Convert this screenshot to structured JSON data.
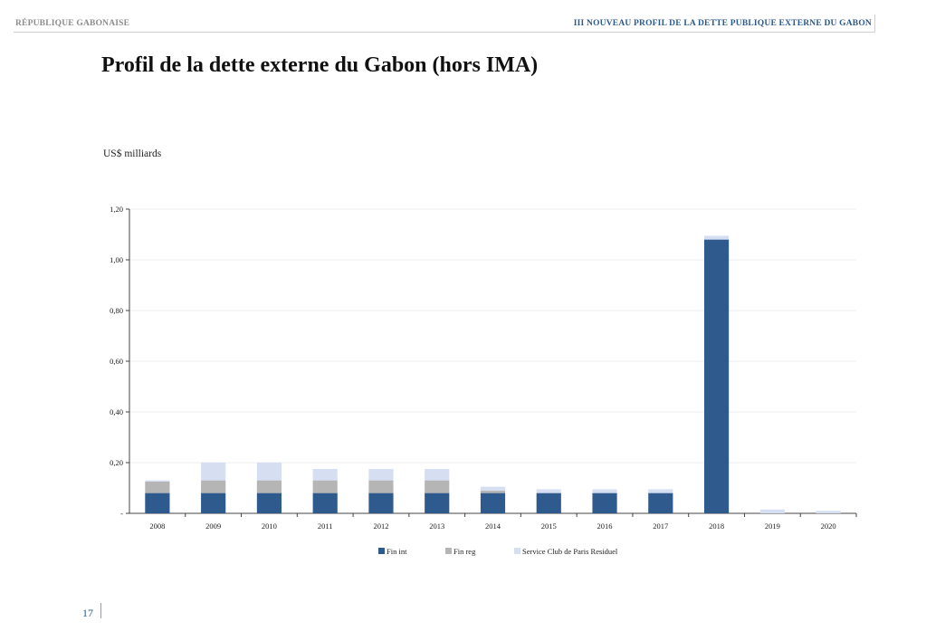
{
  "header": {
    "left": "RÉPUBLIQUE GABONAISE",
    "right": "III   NOUVEAU PROFIL DE LA DETTE PUBLIQUE EXTERNE DU GABON"
  },
  "page_number": "17",
  "colors": {
    "fin_int": "#2e5a8e",
    "fin_reg": "#b5b5b5",
    "club_paris": "#d6dff2",
    "header_accent": "#2b5a8c"
  },
  "chart_data": {
    "type": "bar",
    "stacked": true,
    "title": "Profil de la dette externe du Gabon (hors IMA)",
    "ylabel": "US$ milliards",
    "xlabel": "",
    "categories": [
      "2008",
      "2009",
      "2010",
      "2011",
      "2012",
      "2013",
      "2014",
      "2015",
      "2016",
      "2017",
      "2018",
      "2019",
      "2020"
    ],
    "series": [
      {
        "name": "Fin int",
        "color": "#2e5a8e",
        "values": [
          0.08,
          0.08,
          0.08,
          0.08,
          0.08,
          0.08,
          0.08,
          0.08,
          0.08,
          0.08,
          1.08,
          0.0,
          0.0
        ]
      },
      {
        "name": "Fin reg",
        "color": "#b5b5b5",
        "values": [
          0.045,
          0.05,
          0.05,
          0.05,
          0.05,
          0.05,
          0.01,
          0.0,
          0.0,
          0.0,
          0.0,
          0.0,
          0.0
        ]
      },
      {
        "name": "Service Club de Paris Residuel",
        "color": "#d6dff2",
        "values": [
          0.005,
          0.07,
          0.07,
          0.045,
          0.045,
          0.045,
          0.015,
          0.015,
          0.015,
          0.015,
          0.015,
          0.015,
          0.01
        ]
      }
    ],
    "yticks": [
      "-",
      "0,20",
      "0,40",
      "0,60",
      "0,80",
      "1,00",
      "1,20"
    ],
    "ytick_values": [
      0,
      0.2,
      0.4,
      0.6,
      0.8,
      1.0,
      1.2
    ],
    "ylim": [
      0,
      1.2
    ],
    "grid": true,
    "legend_position": "bottom"
  }
}
